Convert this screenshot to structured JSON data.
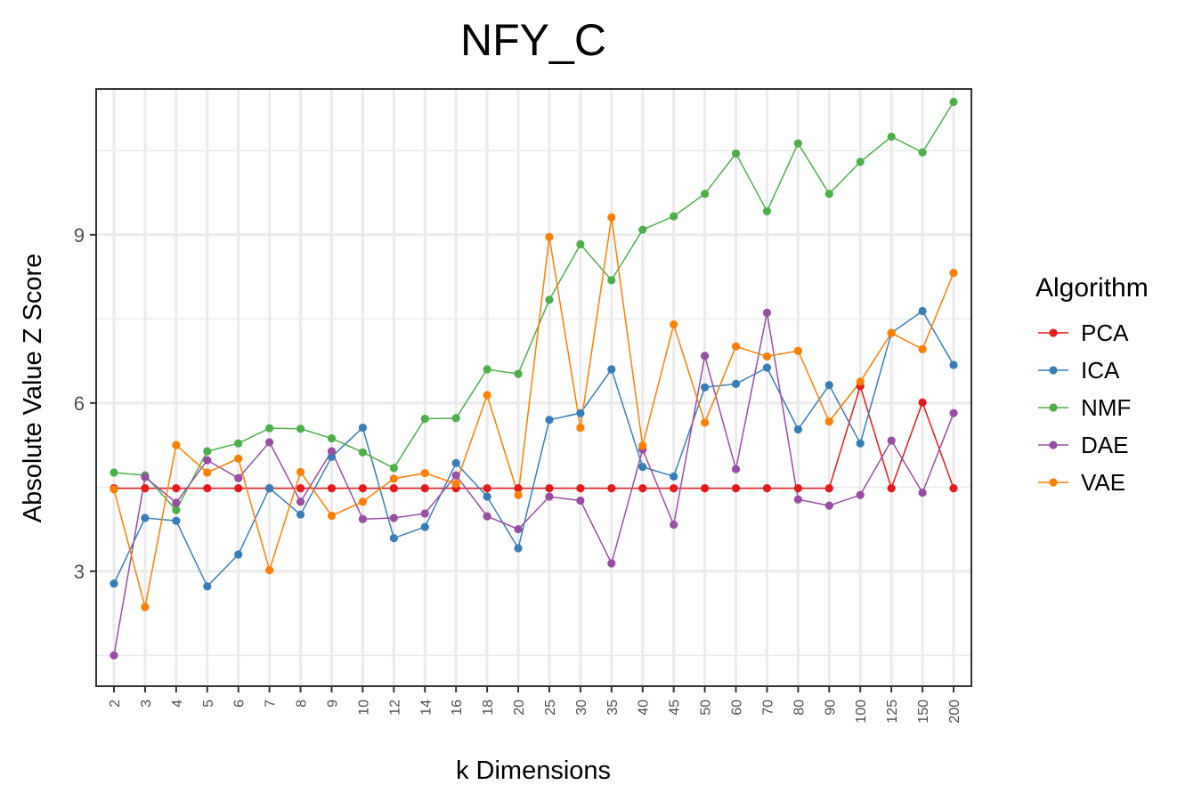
{
  "chart_data": {
    "type": "line",
    "title": "NFY_C",
    "xlabel": "k Dimensions",
    "ylabel": "Absolute Value Z Score",
    "categories": [
      "2",
      "3",
      "4",
      "5",
      "6",
      "7",
      "8",
      "9",
      "10",
      "12",
      "14",
      "16",
      "18",
      "20",
      "25",
      "30",
      "35",
      "40",
      "45",
      "50",
      "60",
      "70",
      "80",
      "90",
      "100",
      "125",
      "150",
      "200"
    ],
    "ylim": [
      0.95,
      11.6
    ],
    "yticks": [
      3,
      6,
      9
    ],
    "grid": true,
    "legend": {
      "title": "Algorithm",
      "position": "right"
    },
    "series": [
      {
        "name": "PCA",
        "color": "#e41a1c",
        "values": [
          4.48,
          4.48,
          4.48,
          4.48,
          4.48,
          4.48,
          4.48,
          4.48,
          4.48,
          4.48,
          4.48,
          4.48,
          4.48,
          4.48,
          4.48,
          4.48,
          4.48,
          4.48,
          4.48,
          4.48,
          4.48,
          4.48,
          4.48,
          4.48,
          6.3,
          4.48,
          6.01,
          4.48
        ]
      },
      {
        "name": "ICA",
        "color": "#377eb8",
        "values": [
          2.78,
          3.95,
          3.9,
          2.73,
          3.3,
          4.48,
          4.01,
          5.04,
          5.56,
          3.59,
          3.79,
          4.93,
          4.33,
          3.41,
          5.7,
          5.82,
          6.6,
          4.86,
          4.69,
          6.28,
          6.34,
          6.63,
          5.53,
          6.32,
          5.28,
          7.25,
          7.64,
          6.68
        ]
      },
      {
        "name": "NMF",
        "color": "#4daf4a",
        "values": [
          4.76,
          4.71,
          4.09,
          5.14,
          5.28,
          5.55,
          5.54,
          5.37,
          5.12,
          4.84,
          5.72,
          5.73,
          6.6,
          6.52,
          7.84,
          8.83,
          8.19,
          9.09,
          9.33,
          9.73,
          10.45,
          9.42,
          10.63,
          9.73,
          10.3,
          10.75,
          10.47,
          11.37
        ]
      },
      {
        "name": "DAE",
        "color": "#984ea3",
        "values": [
          1.5,
          4.68,
          4.22,
          4.98,
          4.66,
          5.3,
          4.24,
          5.14,
          3.93,
          3.95,
          4.03,
          4.71,
          3.98,
          3.75,
          4.33,
          4.26,
          3.14,
          5.17,
          3.83,
          6.84,
          4.82,
          7.61,
          4.28,
          4.17,
          4.36,
          5.33,
          4.4,
          5.82
        ]
      },
      {
        "name": "VAE",
        "color": "#ff7f00",
        "values": [
          4.46,
          2.36,
          5.25,
          4.76,
          5.01,
          3.02,
          4.77,
          3.99,
          4.24,
          4.65,
          4.75,
          4.56,
          6.14,
          4.36,
          8.96,
          5.56,
          9.31,
          5.24,
          7.4,
          5.65,
          7.01,
          6.83,
          6.93,
          5.67,
          6.38,
          7.25,
          6.96,
          8.32
        ]
      }
    ]
  }
}
